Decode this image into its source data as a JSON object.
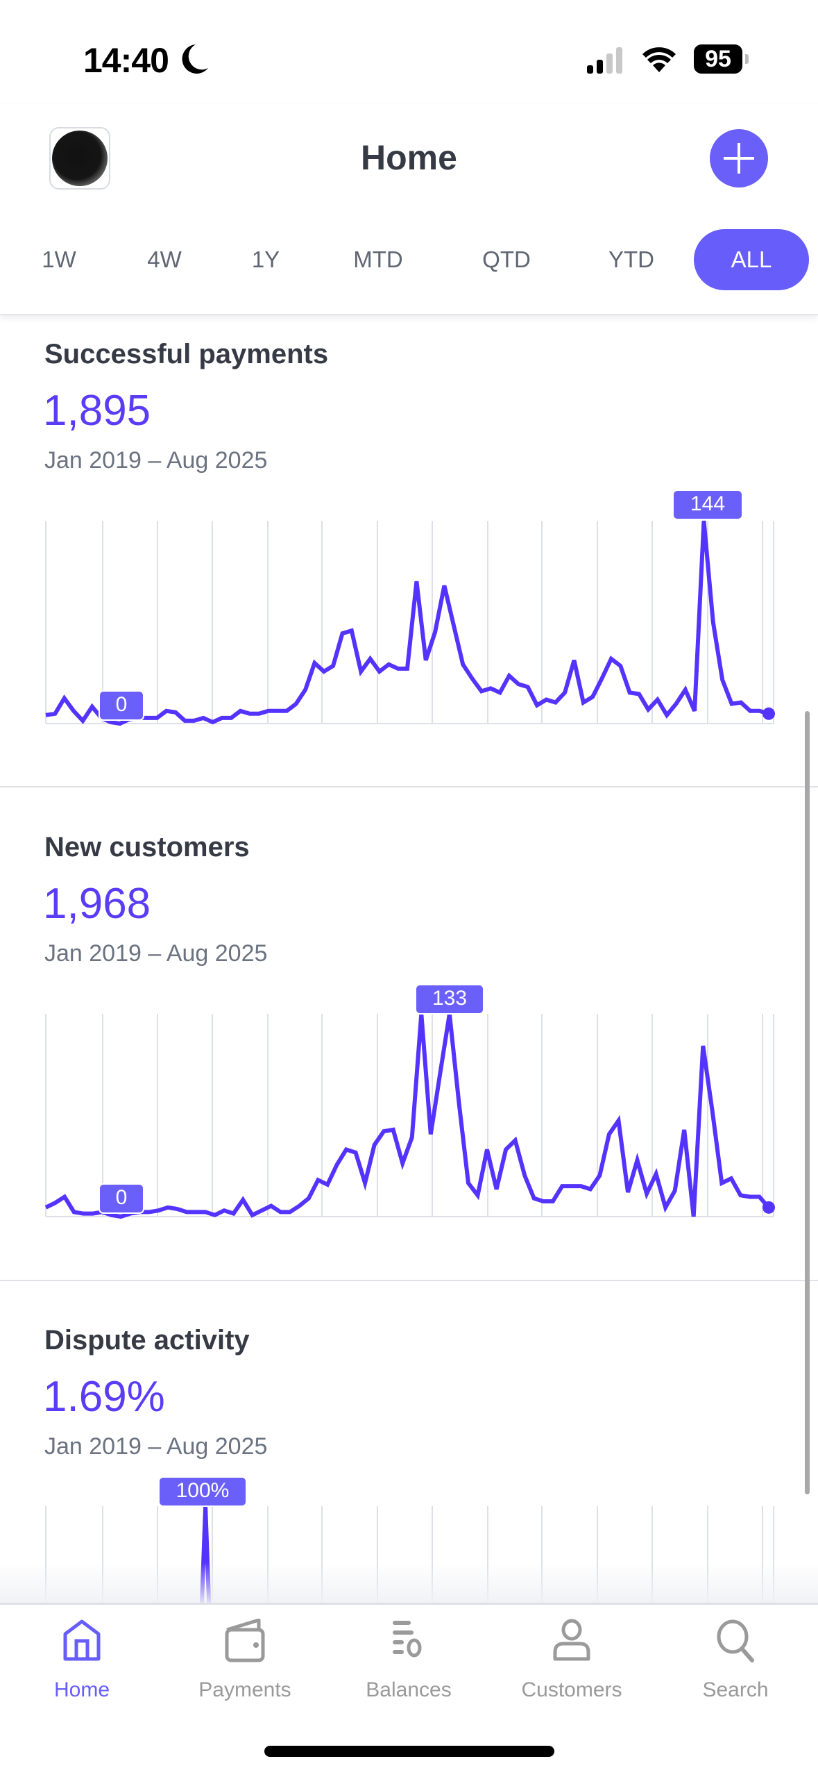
{
  "status_bar": {
    "time": "14:40",
    "battery": "95"
  },
  "header": {
    "title": "Home"
  },
  "range_tabs": [
    {
      "label": "1W",
      "active": false
    },
    {
      "label": "4W",
      "active": false
    },
    {
      "label": "1Y",
      "active": false
    },
    {
      "label": "MTD",
      "active": false
    },
    {
      "label": "QTD",
      "active": false
    },
    {
      "label": "YTD",
      "active": false
    },
    {
      "label": "ALL",
      "active": true
    }
  ],
  "sections": [
    {
      "title": "Successful payments",
      "value": "1,895",
      "date_range": "Jan 2019 – Aug 2025",
      "max_label": "144",
      "min_label": "0"
    },
    {
      "title": "New customers",
      "value": "1,968",
      "date_range": "Jan 2019 – Aug 2025",
      "max_label": "133",
      "min_label": "0"
    },
    {
      "title": "Dispute activity",
      "value": "1.69%",
      "date_range": "Jan 2019 – Aug 2025",
      "max_label": "100%"
    }
  ],
  "colors": {
    "accent": "#675dfb",
    "line": "#5533ff",
    "value": "#5b3cf5",
    "inactive": "#9a9a9a"
  },
  "chart_data": [
    {
      "type": "line",
      "title": "Successful payments",
      "x_range": [
        "Jan 2019",
        "Aug 2025"
      ],
      "ylim": [
        0,
        144
      ],
      "grid": "vertical",
      "values": [
        6,
        7,
        18,
        9,
        2,
        12,
        4,
        1,
        0,
        3,
        4,
        4,
        4,
        9,
        8,
        2,
        2,
        4,
        1,
        4,
        4,
        9,
        7,
        7,
        9,
        9,
        9,
        14,
        24,
        43,
        37,
        41,
        64,
        66,
        37,
        46,
        37,
        42,
        39,
        39,
        101,
        45,
        65,
        98,
        70,
        42,
        32,
        23,
        25,
        22,
        34,
        28,
        26,
        13,
        17,
        15,
        22,
        45,
        15,
        19,
        32,
        46,
        41,
        22,
        21,
        10,
        17,
        6,
        14,
        24,
        9,
        144,
        72,
        31,
        14,
        15,
        9,
        9,
        7
      ]
    },
    {
      "type": "line",
      "title": "New customers",
      "x_range": [
        "Jan 2019",
        "Aug 2025"
      ],
      "ylim": [
        0,
        133
      ],
      "grid": "vertical",
      "values": [
        6,
        9,
        13,
        3,
        2,
        2,
        3,
        1,
        0,
        2,
        3,
        3,
        4,
        6,
        5,
        3,
        3,
        3,
        1,
        4,
        2,
        11,
        1,
        4,
        7,
        3,
        3,
        7,
        12,
        24,
        21,
        34,
        44,
        42,
        22,
        47,
        56,
        57,
        35,
        52,
        133,
        54,
        94,
        133,
        75,
        22,
        14,
        44,
        18,
        44,
        50,
        27,
        12,
        10,
        10,
        20,
        20,
        20,
        18,
        27,
        54,
        63,
        16,
        37,
        15,
        28,
        6,
        17,
        57,
        0,
        112,
        69,
        22,
        25,
        14,
        13,
        13,
        6
      ]
    },
    {
      "type": "line",
      "title": "Dispute activity",
      "x_range": [
        "Jan 2019",
        "Aug 2025"
      ],
      "ylim": [
        0,
        100
      ],
      "grid": "vertical",
      "values": [
        0,
        0,
        0,
        0,
        0,
        0,
        0,
        0,
        0,
        0,
        0,
        0,
        0,
        0,
        0,
        0,
        0,
        100,
        0,
        0,
        0,
        0,
        0,
        0,
        0,
        0,
        0,
        0,
        0,
        0,
        0,
        0,
        0,
        0,
        0,
        0,
        0,
        0,
        0,
        0,
        0,
        0,
        0,
        0,
        0,
        0,
        0,
        0,
        0,
        0,
        0,
        0,
        0,
        0,
        0,
        0,
        0,
        0,
        0,
        0,
        0,
        0,
        0,
        0,
        0,
        0,
        0,
        0,
        0,
        0,
        0,
        0,
        0,
        0,
        0,
        0,
        0,
        0
      ]
    }
  ],
  "tab_bar": [
    {
      "label": "Home",
      "icon": "home-icon",
      "active": true
    },
    {
      "label": "Payments",
      "icon": "wallet-icon",
      "active": false
    },
    {
      "label": "Balances",
      "icon": "balances-icon",
      "active": false
    },
    {
      "label": "Customers",
      "icon": "person-icon",
      "active": false
    },
    {
      "label": "Search",
      "icon": "search-icon",
      "active": false
    }
  ]
}
